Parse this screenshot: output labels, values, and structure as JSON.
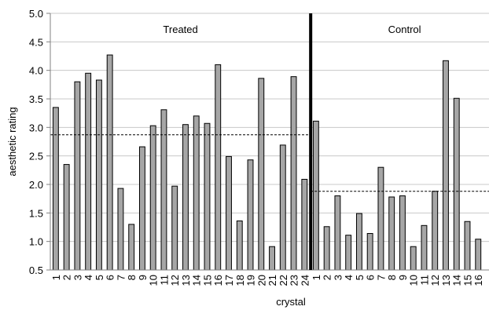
{
  "chart_data": {
    "type": "bar",
    "xlabel": "crystal",
    "ylabel": "aesthetic rating",
    "ylim": [
      0.5,
      5.0
    ],
    "yticks": [
      "5.0",
      "4.5",
      "4.0",
      "3.5",
      "3.0",
      "2.5",
      "2.0",
      "1.5",
      "1.0",
      "0.5"
    ],
    "grid": "horizontal",
    "bar_color": "#a6a6a6",
    "series": [
      {
        "name": "Treated",
        "categories": [
          "1",
          "2",
          "3",
          "4",
          "5",
          "6",
          "7",
          "8",
          "9",
          "10",
          "11",
          "12",
          "13",
          "14",
          "15",
          "16",
          "17",
          "18",
          "19",
          "20",
          "21",
          "22",
          "23",
          "24"
        ],
        "values": [
          3.35,
          2.35,
          3.8,
          3.95,
          3.83,
          4.27,
          1.93,
          1.3,
          2.66,
          3.03,
          3.31,
          1.97,
          3.05,
          3.2,
          3.07,
          4.1,
          2.49,
          1.36,
          2.43,
          3.86,
          0.91,
          2.69,
          3.89,
          2.09
        ],
        "mean": 2.87
      },
      {
        "name": "Control",
        "categories": [
          "1",
          "2",
          "3",
          "4",
          "5",
          "6",
          "7",
          "8",
          "9",
          "10",
          "11",
          "12",
          "13",
          "14",
          "15",
          "16"
        ],
        "values": [
          3.11,
          1.26,
          1.8,
          1.11,
          1.49,
          1.14,
          2.3,
          1.78,
          1.8,
          0.91,
          1.28,
          1.88,
          4.17,
          3.51,
          1.35,
          1.04
        ],
        "mean": 1.88
      }
    ]
  }
}
